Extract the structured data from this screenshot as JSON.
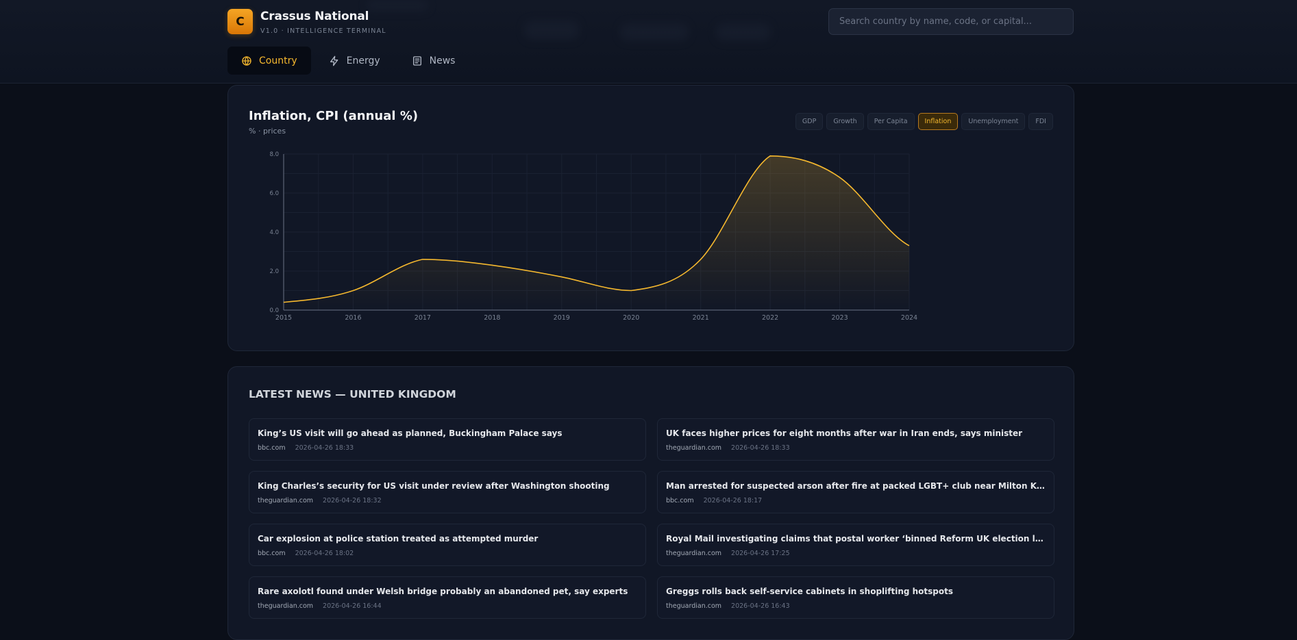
{
  "brand": {
    "logo_letter": "C",
    "title": "Crassus National",
    "subtitle": "V1.0 · INTELLIGENCE TERMINAL"
  },
  "search": {
    "placeholder": "Search country by name, code, or capital..."
  },
  "nav": {
    "tabs": [
      {
        "label": "Country",
        "icon": "globe-icon",
        "active": true
      },
      {
        "label": "Energy",
        "icon": "bolt-icon",
        "active": false
      },
      {
        "label": "News",
        "icon": "newspaper-icon",
        "active": false
      }
    ]
  },
  "chart_panel": {
    "title": "Inflation, CPI (annual %)",
    "subtitle": "% · prices",
    "metrics": [
      {
        "label": "GDP",
        "active": false
      },
      {
        "label": "Growth",
        "active": false
      },
      {
        "label": "Per Capita",
        "active": false
      },
      {
        "label": "Inflation",
        "active": true
      },
      {
        "label": "Unemployment",
        "active": false
      },
      {
        "label": "FDI",
        "active": false
      }
    ]
  },
  "chart_data": {
    "type": "area",
    "title": "Inflation, CPI (annual %)",
    "subtitle": "% · prices",
    "x": [
      "2015",
      "2016",
      "2017",
      "2018",
      "2019",
      "2020",
      "2021",
      "2022",
      "2023",
      "2024"
    ],
    "series": [
      {
        "values": [
          0.4,
          1.0,
          2.6,
          2.3,
          1.7,
          1.0,
          2.6,
          7.9,
          6.8,
          3.3
        ]
      }
    ],
    "y_ticks": [
      "0.0",
      "2.0",
      "4.0",
      "6.0",
      "8.0"
    ],
    "ylim": [
      0,
      8
    ],
    "grid": true,
    "colors": {
      "line": "#f5b82e",
      "fill": "#f5b82e"
    }
  },
  "news": {
    "heading": "LATEST NEWS — UNITED KINGDOM",
    "items": [
      {
        "title": "King’s US visit will go ahead as planned, Buckingham Palace says",
        "source": "bbc.com",
        "time": "2026-04-26 18:33"
      },
      {
        "title": "UK faces higher prices for eight months after war in Iran ends, says minister",
        "source": "theguardian.com",
        "time": "2026-04-26 18:33"
      },
      {
        "title": "King Charles’s security for US visit under review after Washington shooting",
        "source": "theguardian.com",
        "time": "2026-04-26 18:32"
      },
      {
        "title": "Man arrested for suspected arson after fire at packed LGBT+ club near Milton Keynes",
        "source": "bbc.com",
        "time": "2026-04-26 18:17"
      },
      {
        "title": "Car explosion at police station treated as attempted murder",
        "source": "bbc.com",
        "time": "2026-04-26 18:02"
      },
      {
        "title": "Royal Mail investigating claims that postal worker ‘binned Reform UK election leaflets’",
        "source": "theguardian.com",
        "time": "2026-04-26 17:25"
      },
      {
        "title": "Rare axolotl found under Welsh bridge probably an abandoned pet, say experts",
        "source": "theguardian.com",
        "time": "2026-04-26 16:44"
      },
      {
        "title": "Greggs rolls back self-service cabinets in shoplifting hotspots",
        "source": "theguardian.com",
        "time": "2026-04-26 16:43"
      }
    ]
  }
}
